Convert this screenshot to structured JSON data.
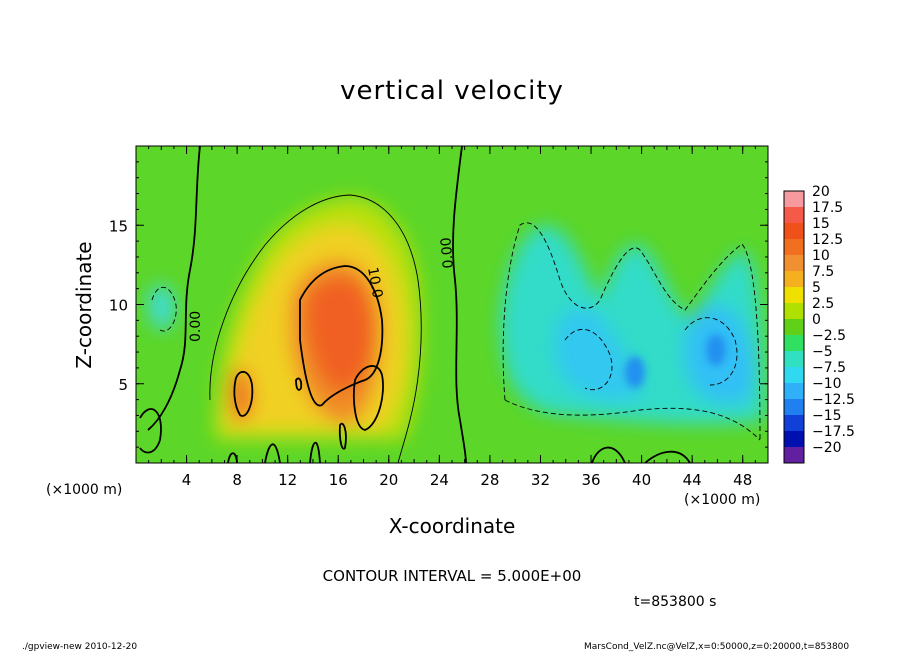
{
  "chart_data": {
    "type": "heatmap",
    "title": "vertical velocity",
    "xlabel": "X-coordinate",
    "ylabel": "Z-coordinate",
    "x_unit_label": "(×1000 m)",
    "x_ticks": [
      "4",
      "8",
      "12",
      "16",
      "20",
      "24",
      "28",
      "32",
      "36",
      "40",
      "44",
      "48"
    ],
    "x_tick_values": [
      4,
      8,
      12,
      16,
      20,
      24,
      28,
      32,
      36,
      40,
      44,
      48
    ],
    "y_ticks": [
      "5",
      "10",
      "15"
    ],
    "y_tick_values": [
      5,
      10,
      15
    ],
    "xlim": [
      0,
      50
    ],
    "ylim": [
      0,
      20
    ],
    "colorbar": {
      "levels": [
        "20",
        "17.5",
        "15",
        "12.5",
        "10",
        "7.5",
        "5",
        "2.5",
        "0",
        "−2.5",
        "−5",
        "−7.5",
        "−10",
        "−12.5",
        "−15",
        "−17.5",
        "−20"
      ],
      "level_values": [
        20,
        17.5,
        15,
        12.5,
        10,
        7.5,
        5,
        2.5,
        0,
        -2.5,
        -5,
        -7.5,
        -10,
        -12.5,
        -15,
        -17.5,
        -20
      ],
      "colors": [
        "#f79aa0",
        "#f55a48",
        "#f0501a",
        "#f07020",
        "#f09030",
        "#f5b020",
        "#f0e000",
        "#b0e000",
        "#60d018",
        "#30e060",
        "#30e0c0",
        "#30d8f0",
        "#30b0f8",
        "#2080f0",
        "#1040d8",
        "#0010b0",
        "#6020a0"
      ]
    },
    "contour_labels": [
      "0.00",
      "10.0",
      "0.00"
    ],
    "contour_interval": "CONTOUR INTERVAL = 5.000E+00",
    "time": "t=853800 s"
  },
  "footer": {
    "left": "./gpview-new   2010-12-20",
    "right": "MarsCond_VelZ.nc@VelZ,x=0:50000,z=0:20000,t=853800"
  }
}
